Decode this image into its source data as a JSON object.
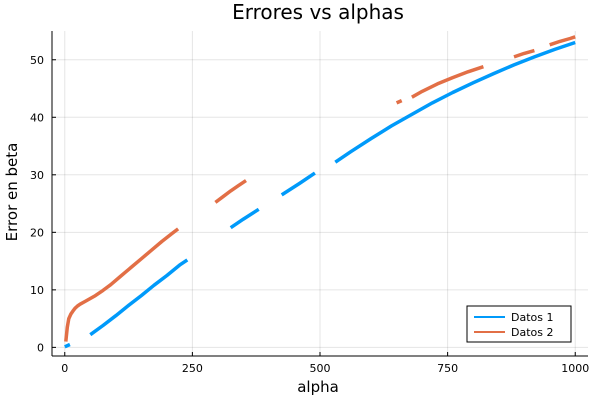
{
  "chart_data": {
    "type": "line",
    "title": "Errores vs alphas",
    "xlabel": "alpha",
    "ylabel": "Error en beta",
    "xlim": [
      -25,
      1025
    ],
    "ylim": [
      -1.5,
      55
    ],
    "xticks": [
      0,
      250,
      500,
      750,
      1000
    ],
    "yticks": [
      0,
      10,
      20,
      30,
      40,
      50
    ],
    "grid": true,
    "legend_position": "bottom-right",
    "series": [
      {
        "name": "Datos 1",
        "color": "#009AFA",
        "segments": [
          {
            "x": [
              0,
              10
            ],
            "y": [
              0.1,
              0.5
            ]
          },
          {
            "x": [
              50,
              75,
              100,
              125,
              150,
              175,
              200,
              225,
              240
            ],
            "y": [
              2.2,
              3.8,
              5.5,
              7.3,
              9.0,
              10.8,
              12.5,
              14.3,
              15.2
            ]
          },
          {
            "x": [
              325,
              350,
              380
            ],
            "y": [
              20.8,
              22.3,
              24.0
            ]
          },
          {
            "x": [
              425,
              460,
              490
            ],
            "y": [
              26.5,
              28.5,
              30.3
            ]
          },
          {
            "x": [
              530,
              560,
              600,
              640,
              680,
              720,
              760,
              800,
              840,
              880,
              920,
              960,
              1000
            ],
            "y": [
              32.2,
              34.0,
              36.3,
              38.5,
              40.5,
              42.5,
              44.3,
              46.0,
              47.6,
              49.1,
              50.5,
              51.8,
              53.0
            ]
          }
        ]
      },
      {
        "name": "Datos 2",
        "color": "#E26F46",
        "segments": [
          {
            "x": [
              2,
              5,
              8,
              12,
              16,
              20,
              25,
              30,
              40,
              50,
              60,
              75,
              90,
              110,
              130,
              150,
              170,
              190,
              210,
              222
            ],
            "y": [
              1.0,
              3.5,
              5.0,
              5.8,
              6.3,
              6.8,
              7.2,
              7.5,
              8.0,
              8.5,
              9.0,
              9.9,
              10.9,
              12.4,
              13.9,
              15.4,
              16.9,
              18.4,
              19.8,
              20.6
            ]
          },
          {
            "x": [
              295,
              310,
              325,
              340,
              355
            ],
            "y": [
              25.2,
              26.2,
              27.2,
              28.1,
              29.0
            ]
          },
          {
            "x": [
              650,
              660
            ],
            "y": [
              42.5,
              42.9
            ]
          },
          {
            "x": [
              680,
              700,
              730,
              760,
              790,
              820
            ],
            "y": [
              43.5,
              44.5,
              45.8,
              46.9,
              47.9,
              48.8
            ]
          },
          {
            "x": [
              880,
              900,
              920
            ],
            "y": [
              50.5,
              51.1,
              51.6
            ]
          },
          {
            "x": [
              950,
              970,
              990,
              1000
            ],
            "y": [
              52.6,
              53.2,
              53.7,
              54.0
            ]
          }
        ]
      }
    ]
  }
}
